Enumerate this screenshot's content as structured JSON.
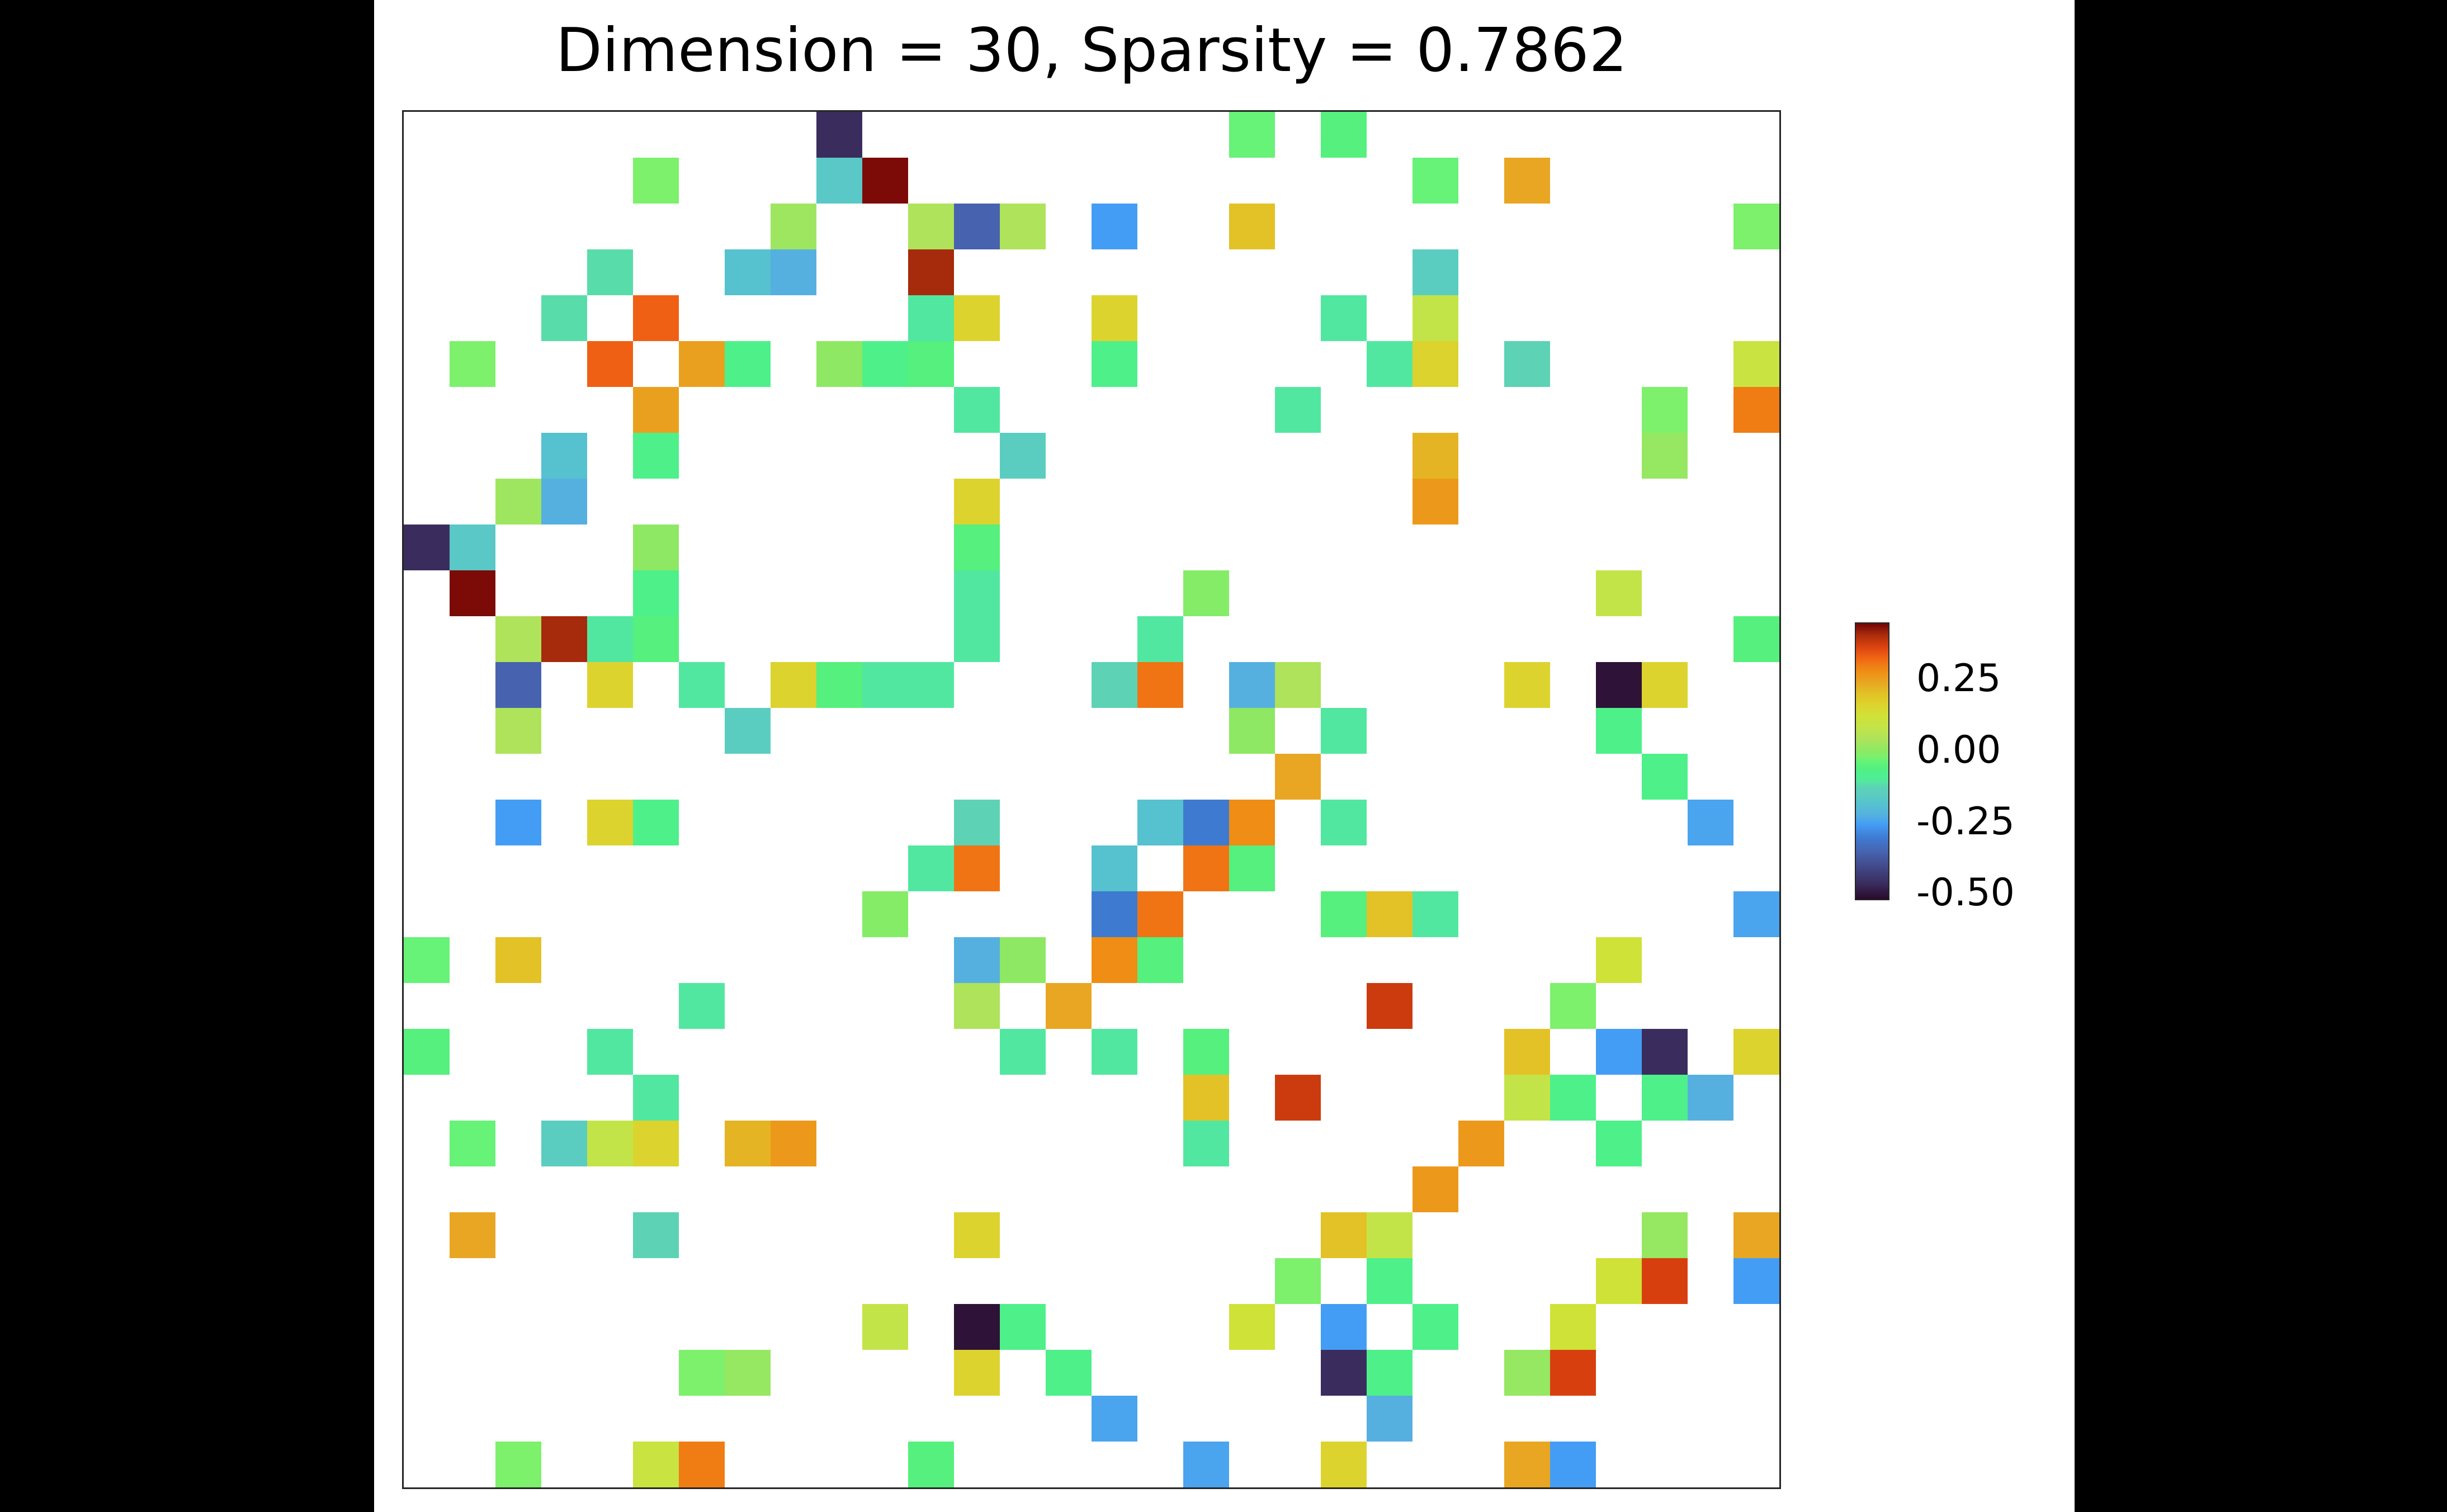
{
  "title": "Dimension = 30, Sparsity = 0.7862",
  "chart_data": {
    "type": "heatmap",
    "title": "Dimension = 30, Sparsity = 0.7862",
    "dimension": 30,
    "sparsity": 0.7862,
    "matrix_symmetric": true,
    "diagonal": "empty",
    "zero_color": "#ffffff",
    "colormap": "turbo",
    "vmin": -0.525,
    "vmax": 0.448,
    "legend_position": "right",
    "grid": false,
    "colorbar_ticks": [
      {
        "label": "0.25",
        "value": 0.25
      },
      {
        "label": "0.00",
        "value": 0.0
      },
      {
        "label": "-0.25",
        "value": -0.25
      },
      {
        "label": "-0.50",
        "value": -0.5
      }
    ],
    "turbo_stops": [
      [
        0.0,
        40,
        12,
        46
      ],
      [
        0.015,
        46,
        18,
        55
      ],
      [
        0.057,
        58,
        45,
        94
      ],
      [
        0.17,
        71,
        98,
        174
      ],
      [
        0.221,
        63,
        122,
        209
      ],
      [
        0.272,
        68,
        157,
        245
      ],
      [
        0.303,
        85,
        176,
        224
      ],
      [
        0.344,
        86,
        193,
        207
      ],
      [
        0.38,
        91,
        205,
        192
      ],
      [
        0.406,
        93,
        210,
        180
      ],
      [
        0.427,
        82,
        232,
        160
      ],
      [
        0.457,
        78,
        240,
        138
      ],
      [
        0.478,
        85,
        240,
        125
      ],
      [
        0.498,
        102,
        242,
        120
      ],
      [
        0.519,
        125,
        240,
        108
      ],
      [
        0.54,
        142,
        232,
        99
      ],
      [
        0.56,
        158,
        230,
        95
      ],
      [
        0.581,
        174,
        227,
        91
      ],
      [
        0.622,
        195,
        228,
        72
      ],
      [
        0.663,
        207,
        226,
        56
      ],
      [
        0.704,
        221,
        211,
        47
      ],
      [
        0.745,
        226,
        194,
        38
      ],
      [
        0.786,
        232,
        166,
        34
      ],
      [
        0.827,
        239,
        141,
        21
      ],
      [
        0.858,
        240,
        116,
        20
      ],
      [
        0.879,
        240,
        96,
        20
      ],
      [
        0.92,
        215,
        64,
        14
      ],
      [
        0.961,
        166,
        42,
        12
      ],
      [
        0.992,
        124,
        10,
        6
      ],
      [
        1.0,
        116,
        6,
        4
      ]
    ],
    "cells_upper_triangle": [
      [
        0,
        9,
        -0.47
      ],
      [
        0,
        18,
        -0.04
      ],
      [
        0,
        20,
        -0.06
      ],
      [
        1,
        5,
        -0.02
      ],
      [
        1,
        9,
        -0.17
      ],
      [
        1,
        10,
        0.44
      ],
      [
        1,
        22,
        -0.04
      ],
      [
        1,
        24,
        0.24
      ],
      [
        2,
        8,
        0.02
      ],
      [
        2,
        11,
        0.04
      ],
      [
        2,
        12,
        -0.36
      ],
      [
        2,
        13,
        0.04
      ],
      [
        2,
        15,
        -0.26
      ],
      [
        2,
        18,
        0.2
      ],
      [
        2,
        29,
        -0.02
      ],
      [
        3,
        4,
        -0.12
      ],
      [
        3,
        7,
        -0.19
      ],
      [
        3,
        8,
        -0.23
      ],
      [
        3,
        11,
        0.41
      ],
      [
        3,
        22,
        -0.155
      ],
      [
        4,
        5,
        0.33
      ],
      [
        4,
        11,
        -0.11
      ],
      [
        4,
        12,
        0.16
      ],
      [
        4,
        15,
        0.16
      ],
      [
        4,
        20,
        -0.11
      ],
      [
        4,
        22,
        0.08
      ],
      [
        5,
        6,
        0.25
      ],
      [
        5,
        7,
        -0.08
      ],
      [
        5,
        9,
        0.0
      ],
      [
        5,
        10,
        -0.08
      ],
      [
        5,
        11,
        -0.06
      ],
      [
        5,
        15,
        -0.08
      ],
      [
        5,
        21,
        -0.11
      ],
      [
        5,
        22,
        0.16
      ],
      [
        5,
        24,
        -0.13
      ],
      [
        5,
        29,
        0.1
      ],
      [
        6,
        12,
        -0.11
      ],
      [
        6,
        19,
        -0.11
      ],
      [
        6,
        27,
        -0.02
      ],
      [
        6,
        29,
        0.3
      ],
      [
        7,
        13,
        -0.155
      ],
      [
        7,
        22,
        0.22
      ],
      [
        7,
        27,
        0.01
      ],
      [
        8,
        12,
        0.16
      ],
      [
        8,
        22,
        0.26
      ],
      [
        9,
        12,
        -0.06
      ],
      [
        10,
        12,
        -0.11
      ],
      [
        10,
        17,
        -0.01
      ],
      [
        10,
        26,
        0.08
      ],
      [
        11,
        12,
        -0.11
      ],
      [
        11,
        16,
        -0.11
      ],
      [
        11,
        29,
        -0.06
      ],
      [
        12,
        15,
        -0.13
      ],
      [
        12,
        16,
        0.31
      ],
      [
        12,
        18,
        -0.23
      ],
      [
        12,
        19,
        0.04
      ],
      [
        12,
        24,
        0.16
      ],
      [
        12,
        26,
        -0.51
      ],
      [
        12,
        27,
        0.16
      ],
      [
        13,
        18,
        0.0
      ],
      [
        13,
        20,
        -0.11
      ],
      [
        13,
        26,
        -0.08
      ],
      [
        14,
        19,
        0.24
      ],
      [
        14,
        27,
        -0.08
      ],
      [
        15,
        16,
        -0.19
      ],
      [
        15,
        17,
        -0.31
      ],
      [
        15,
        18,
        0.28
      ],
      [
        15,
        20,
        -0.11
      ],
      [
        15,
        28,
        -0.25
      ],
      [
        16,
        17,
        0.31
      ],
      [
        16,
        18,
        -0.06
      ],
      [
        17,
        20,
        -0.06
      ],
      [
        17,
        21,
        0.2
      ],
      [
        17,
        22,
        -0.11
      ],
      [
        17,
        29,
        -0.25
      ],
      [
        18,
        26,
        0.12
      ],
      [
        19,
        21,
        0.38
      ],
      [
        19,
        25,
        -0.02
      ],
      [
        20,
        24,
        0.2
      ],
      [
        20,
        26,
        -0.26
      ],
      [
        20,
        27,
        -0.47
      ],
      [
        20,
        29,
        0.16
      ],
      [
        21,
        24,
        0.08
      ],
      [
        21,
        25,
        -0.08
      ],
      [
        21,
        27,
        -0.08
      ],
      [
        21,
        28,
        -0.23
      ],
      [
        22,
        23,
        0.26
      ],
      [
        22,
        26,
        -0.08
      ],
      [
        24,
        27,
        0.01
      ],
      [
        24,
        29,
        0.24
      ],
      [
        25,
        26,
        0.12
      ],
      [
        25,
        27,
        0.37
      ],
      [
        25,
        29,
        -0.26
      ]
    ]
  }
}
